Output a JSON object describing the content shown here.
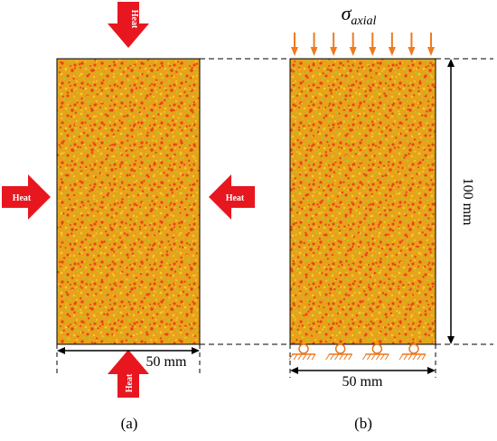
{
  "colors": {
    "specimen_base": "#e8a21a",
    "speckle_red": "#e8401a",
    "speckle_green": "#9ecf36",
    "speckle_yellow": "#f2cf2a",
    "heat_arrow": "#e8171f",
    "load_arrow": "#f07a1e",
    "support": "#e8761e",
    "line": "#000000"
  },
  "panel_a": {
    "heat_top": "Heat",
    "heat_left": "Heat",
    "heat_right": "Heat",
    "heat_bottom": "Heat",
    "width_label": "50 mm",
    "caption": "(a)"
  },
  "panel_b": {
    "load_symbol": "σ",
    "load_subscript": "axial",
    "height_label": "100 mm",
    "width_label": "50 mm",
    "caption": "(b)",
    "load_arrow_count": 8,
    "roller_support_count": 4
  }
}
